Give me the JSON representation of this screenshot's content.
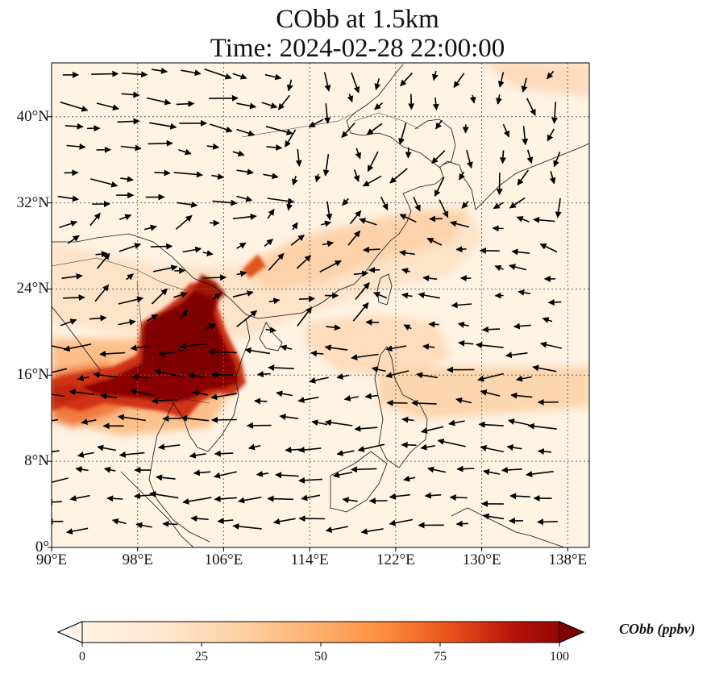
{
  "title": {
    "line1": "CObb at 1.5km",
    "line2": "Time: 2024-02-28 22:00:00"
  },
  "map": {
    "lon_range": [
      90,
      140
    ],
    "lat_range": [
      0,
      45
    ],
    "lon_ticks": [
      {
        "value": 90,
        "label": "90°E"
      },
      {
        "value": 98,
        "label": "98°E"
      },
      {
        "value": 106,
        "label": "106°E"
      },
      {
        "value": 114,
        "label": "114°E"
      },
      {
        "value": 122,
        "label": "122°E"
      },
      {
        "value": 130,
        "label": "130°E"
      },
      {
        "value": 138,
        "label": "138°E"
      }
    ],
    "lat_ticks": [
      {
        "value": 0,
        "label": "0°"
      },
      {
        "value": 8,
        "label": "8°N"
      },
      {
        "value": 16,
        "label": "16°N"
      },
      {
        "value": 24,
        "label": "24°N"
      },
      {
        "value": 32,
        "label": "32°N"
      },
      {
        "value": 40,
        "label": "40°N"
      }
    ],
    "gridlines": true
  },
  "colorbar": {
    "label": "CObb (ppbv)",
    "min": 0,
    "max": 100,
    "extend": "both",
    "ticks": [
      {
        "value": 0,
        "label": "0"
      },
      {
        "value": 25,
        "label": "25"
      },
      {
        "value": 50,
        "label": "50"
      },
      {
        "value": 75,
        "label": "75"
      },
      {
        "value": 100,
        "label": "100"
      }
    ],
    "colormap": [
      "#fff5eb",
      "#fdd0a2",
      "#fd8d3c",
      "#d94801",
      "#a50f15",
      "#7f0000"
    ]
  }
}
